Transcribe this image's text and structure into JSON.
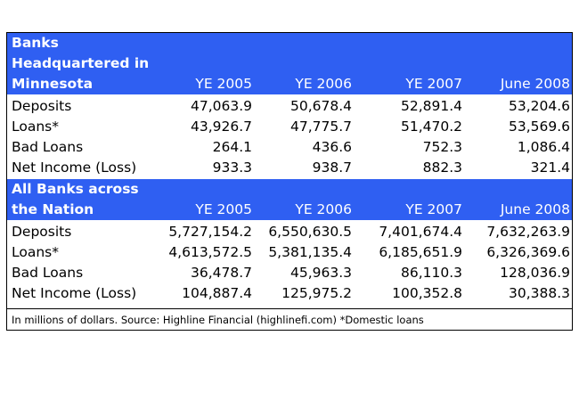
{
  "minnesota": {
    "title_lines": [
      "Banks",
      "Headquartered in",
      "Minnesota"
    ],
    "columns": [
      "YE 2005",
      "YE 2006",
      "YE 2007",
      "June 2008"
    ],
    "rows": [
      {
        "label": "Deposits",
        "values": [
          "47,063.9",
          "50,678.4",
          "52,891.4",
          "53,204.6"
        ]
      },
      {
        "label": "Loans*",
        "values": [
          "43,926.7",
          "47,775.7",
          "51,470.2",
          "53,569.6"
        ]
      },
      {
        "label": "Bad Loans",
        "values": [
          "264.1",
          "436.6",
          "752.3",
          "1,086.4"
        ]
      },
      {
        "label": "Net Income (Loss)",
        "values": [
          "933.3",
          "938.7",
          "882.3",
          "321.4"
        ]
      }
    ]
  },
  "nation": {
    "title_lines": [
      "All Banks across",
      "the Nation"
    ],
    "columns": [
      "YE 2005",
      "YE 2006",
      "YE 2007",
      "June 2008"
    ],
    "rows": [
      {
        "label": "Deposits",
        "values": [
          "5,727,154.2",
          "6,550,630.5",
          "7,401,674.4",
          "7,632,263.9"
        ]
      },
      {
        "label": "Loans*",
        "values": [
          "4,613,572.5",
          "5,381,135.4",
          "6,185,651.9",
          "6,326,369.6"
        ]
      },
      {
        "label": "Bad Loans",
        "values": [
          "36,478.7",
          "45,963.3",
          "86,110.3",
          "128,036.9"
        ]
      },
      {
        "label": "Net Income (Loss)",
        "values": [
          "104,887.4",
          "125,975.2",
          "100,352.8",
          "30,388.3"
        ]
      }
    ]
  },
  "footnote": "In millions of dollars. Source: Highline Financial (highlinefi.com) *Domestic loans",
  "colors": {
    "header_bg": "#2f5ff2",
    "header_text": "#ffffff",
    "body_text": "#000000"
  }
}
